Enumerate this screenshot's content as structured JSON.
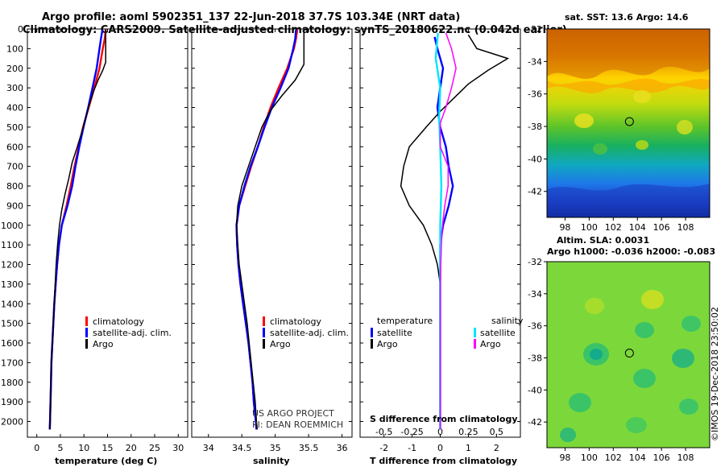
{
  "title_line1": "Argo profile: aoml 5902351_137 22-Jun-2018 37.7S 103.34E (NRT data)",
  "title_line2": "Climatology: CARS2009. Satellite-adjusted climatology: synTS_20180622.nc (0.042d earlier)",
  "colors": {
    "climatology": "#ff0000",
    "satellite": "#0000ff",
    "argo": "#000000",
    "sal_satellite": "#00e5ff",
    "sal_argo": "#ff00ff"
  },
  "chart_data": [
    {
      "type": "line",
      "id": "temperature",
      "xlabel": "temperature (deg C)",
      "xlim": [
        -2,
        32
      ],
      "ylim": [
        2080,
        0
      ],
      "xticks": [
        0,
        5,
        10,
        15,
        20,
        25,
        30
      ],
      "depth_ticks": [
        0,
        100,
        200,
        300,
        400,
        500,
        600,
        700,
        800,
        900,
        1000,
        1100,
        1200,
        1300,
        1400,
        1500,
        1600,
        1700,
        1800,
        1900,
        2000
      ],
      "legend": [
        "climatology",
        "satellite-adj. clim.",
        "Argo"
      ],
      "series": [
        {
          "name": "climatology",
          "points": [
            [
              14.6,
              5
            ],
            [
              14.4,
              50
            ],
            [
              14.0,
              100
            ],
            [
              13.3,
              200
            ],
            [
              12.2,
              300
            ],
            [
              11.0,
              400
            ],
            [
              9.8,
              500
            ],
            [
              8.9,
              600
            ],
            [
              8.0,
              700
            ],
            [
              7.2,
              800
            ],
            [
              6.3,
              900
            ],
            [
              5.3,
              1000
            ],
            [
              4.7,
              1100
            ],
            [
              4.3,
              1200
            ],
            [
              4.0,
              1300
            ],
            [
              3.7,
              1400
            ],
            [
              3.5,
              1500
            ],
            [
              3.3,
              1600
            ],
            [
              3.1,
              1700
            ],
            [
              3.0,
              1800
            ],
            [
              2.9,
              1900
            ],
            [
              2.8,
              2000
            ],
            [
              2.75,
              2040
            ]
          ]
        },
        {
          "name": "satellite-adj. clim.",
          "points": [
            [
              13.9,
              5
            ],
            [
              13.6,
              50
            ],
            [
              13.3,
              100
            ],
            [
              12.7,
              200
            ],
            [
              11.8,
              300
            ],
            [
              10.9,
              400
            ],
            [
              9.9,
              500
            ],
            [
              9.0,
              600
            ],
            [
              8.2,
              700
            ],
            [
              7.5,
              800
            ],
            [
              6.5,
              900
            ],
            [
              5.3,
              1000
            ],
            [
              4.7,
              1100
            ],
            [
              4.3,
              1200
            ],
            [
              4.0,
              1300
            ],
            [
              3.7,
              1400
            ],
            [
              3.5,
              1500
            ],
            [
              3.3,
              1600
            ],
            [
              3.1,
              1700
            ],
            [
              3.0,
              1800
            ],
            [
              2.9,
              1900
            ],
            [
              2.8,
              2000
            ],
            [
              2.75,
              2040
            ]
          ]
        },
        {
          "name": "Argo",
          "points": [
            [
              14.6,
              0
            ],
            [
              14.6,
              170
            ],
            [
              14.0,
              210
            ],
            [
              13.0,
              260
            ],
            [
              12.0,
              320
            ],
            [
              11.2,
              380
            ],
            [
              10.5,
              440
            ],
            [
              9.6,
              520
            ],
            [
              8.6,
              600
            ],
            [
              7.5,
              680
            ],
            [
              6.8,
              760
            ],
            [
              6.0,
              840
            ],
            [
              5.3,
              920
            ],
            [
              4.8,
              1000
            ],
            [
              4.4,
              1100
            ],
            [
              4.1,
              1200
            ],
            [
              3.9,
              1300
            ],
            [
              3.7,
              1400
            ],
            [
              3.5,
              1500
            ],
            [
              3.3,
              1600
            ],
            [
              3.1,
              1700
            ],
            [
              3.0,
              1800
            ],
            [
              2.9,
              1900
            ],
            [
              2.8,
              2000
            ],
            [
              2.75,
              2040
            ]
          ]
        }
      ]
    },
    {
      "type": "line",
      "id": "salinity",
      "xlabel": "salinity",
      "xlim": [
        33.75,
        36.15
      ],
      "ylim": [
        2080,
        0
      ],
      "xticks": [
        34,
        34.5,
        35,
        35.5,
        36
      ],
      "xticklabels": [
        "34",
        "34.5",
        "35",
        "35.5",
        "36"
      ],
      "legend": [
        "climatology",
        "satellite-adj. clim.",
        "Argo"
      ],
      "series": [
        {
          "name": "climatology",
          "points": [
            [
              35.33,
              5
            ],
            [
              35.31,
              50
            ],
            [
              35.28,
              100
            ],
            [
              35.18,
              200
            ],
            [
              35.05,
              300
            ],
            [
              34.93,
              400
            ],
            [
              34.83,
              500
            ],
            [
              34.74,
              600
            ],
            [
              34.64,
              700
            ],
            [
              34.55,
              800
            ],
            [
              34.46,
              900
            ],
            [
              34.42,
              1000
            ],
            [
              34.43,
              1100
            ],
            [
              34.45,
              1200
            ],
            [
              34.48,
              1300
            ],
            [
              34.52,
              1400
            ],
            [
              34.56,
              1500
            ],
            [
              34.6,
              1600
            ],
            [
              34.63,
              1700
            ],
            [
              34.66,
              1800
            ],
            [
              34.68,
              1900
            ],
            [
              34.71,
              2000
            ],
            [
              34.72,
              2040
            ]
          ]
        },
        {
          "name": "satellite-adj. clim.",
          "points": [
            [
              35.31,
              5
            ],
            [
              35.3,
              50
            ],
            [
              35.27,
              100
            ],
            [
              35.2,
              200
            ],
            [
              35.08,
              300
            ],
            [
              34.95,
              400
            ],
            [
              34.84,
              500
            ],
            [
              34.74,
              600
            ],
            [
              34.63,
              700
            ],
            [
              34.54,
              800
            ],
            [
              34.46,
              900
            ],
            [
              34.42,
              1000
            ],
            [
              34.43,
              1100
            ],
            [
              34.45,
              1200
            ],
            [
              34.48,
              1300
            ],
            [
              34.52,
              1400
            ],
            [
              34.56,
              1500
            ],
            [
              34.6,
              1600
            ],
            [
              34.63,
              1700
            ],
            [
              34.66,
              1800
            ],
            [
              34.68,
              1900
            ],
            [
              34.71,
              2000
            ],
            [
              34.72,
              2040
            ]
          ]
        },
        {
          "name": "Argo",
          "points": [
            [
              35.43,
              0
            ],
            [
              35.43,
              180
            ],
            [
              35.3,
              260
            ],
            [
              35.1,
              340
            ],
            [
              34.92,
              420
            ],
            [
              34.8,
              500
            ],
            [
              34.7,
              600
            ],
            [
              34.6,
              700
            ],
            [
              34.5,
              800
            ],
            [
              34.44,
              900
            ],
            [
              34.42,
              1000
            ],
            [
              34.44,
              1100
            ],
            [
              34.46,
              1200
            ],
            [
              34.5,
              1300
            ],
            [
              34.54,
              1400
            ],
            [
              34.58,
              1500
            ],
            [
              34.61,
              1600
            ],
            [
              34.64,
              1700
            ],
            [
              34.67,
              1800
            ],
            [
              34.7,
              1900
            ],
            [
              34.72,
              2000
            ],
            [
              34.73,
              2040
            ]
          ]
        }
      ]
    },
    {
      "type": "line",
      "id": "difference",
      "xlabel": "T difference from climatology",
      "s_axis_label": "S difference from climatology",
      "xlim": [
        -2.85,
        2.85
      ],
      "ylim": [
        2080,
        0
      ],
      "xticks": [
        -2,
        -1,
        0,
        1,
        2
      ],
      "s_xticks": [
        -0.5,
        -0.25,
        0,
        0.25,
        0.5
      ],
      "s_xticklabels": [
        "-0.5",
        "-0.25",
        "0",
        "0.25",
        "0.5"
      ],
      "legend_temperature_title": "temperature",
      "legend_salinity_title": "salinity",
      "legend_items": [
        "satellite",
        "Argo",
        "satellite",
        "Argo"
      ],
      "series": [
        {
          "name": "temperature satellite",
          "points": [
            [
              -0.2,
              40
            ],
            [
              -0.1,
              100
            ],
            [
              0.1,
              200
            ],
            [
              0.0,
              300
            ],
            [
              -0.1,
              400
            ],
            [
              0.0,
              500
            ],
            [
              0.2,
              600
            ],
            [
              0.3,
              700
            ],
            [
              0.45,
              800
            ],
            [
              0.3,
              900
            ],
            [
              0.1,
              1000
            ],
            [
              0.0,
              1100
            ],
            [
              0.0,
              1200
            ],
            [
              0.0,
              1300
            ],
            [
              0.0,
              1400
            ],
            [
              0.0,
              2040
            ]
          ]
        },
        {
          "name": "temperature Argo",
          "points": [
            [
              1.0,
              30
            ],
            [
              1.3,
              100
            ],
            [
              2.4,
              150
            ],
            [
              1.7,
              210
            ],
            [
              1.0,
              280
            ],
            [
              0.5,
              350
            ],
            [
              0.0,
              420
            ],
            [
              -0.5,
              500
            ],
            [
              -1.1,
              600
            ],
            [
              -1.3,
              700
            ],
            [
              -1.4,
              800
            ],
            [
              -1.1,
              900
            ],
            [
              -0.6,
              1000
            ],
            [
              -0.3,
              1100
            ],
            [
              -0.1,
              1200
            ],
            [
              0.0,
              1300
            ],
            [
              0.0,
              2040
            ]
          ]
        },
        {
          "name": "salinity satellite",
          "points": [
            [
              -0.02,
              20
            ],
            [
              -0.03,
              80
            ],
            [
              -0.04,
              150
            ],
            [
              0.0,
              300
            ],
            [
              -0.01,
              450
            ],
            [
              0.0,
              600
            ],
            [
              0.01,
              800
            ],
            [
              0.0,
              1000
            ],
            [
              0.0,
              2040
            ]
          ]
        },
        {
          "name": "salinity Argo",
          "points": [
            [
              0.05,
              20
            ],
            [
              0.1,
              100
            ],
            [
              0.14,
              200
            ],
            [
              0.1,
              300
            ],
            [
              0.05,
              400
            ],
            [
              0.0,
              480
            ],
            [
              0.0,
              600
            ],
            [
              0.07,
              700
            ],
            [
              0.07,
              800
            ],
            [
              0.04,
              900
            ],
            [
              0.02,
              1000
            ],
            [
              0.01,
              1100
            ],
            [
              0.0,
              1300
            ],
            [
              0.0,
              2040
            ]
          ]
        }
      ]
    }
  ],
  "credit_line1": "US ARGO PROJECT",
  "credit_line2": "PI: DEAN ROEMMICH",
  "map_top": {
    "title": "sat. SST: 13.6 Argo: 14.6",
    "lat_ticks": [
      "-32",
      "-34",
      "-36",
      "-38",
      "-40",
      "-42"
    ],
    "lon_ticks": [
      "98",
      "100",
      "102",
      "104",
      "106",
      "108"
    ],
    "argo_lon": 103.34,
    "argo_lat": -37.7
  },
  "map_bottom": {
    "title_line1": "Altim. SLA: 0.0031",
    "title_line2": "Argo h1000: -0.036 h2000: -0.083",
    "lat_ticks": [
      "-32",
      "-34",
      "-36",
      "-38",
      "-40",
      "-42"
    ],
    "lon_ticks": [
      "98",
      "100",
      "102",
      "104",
      "106",
      "108"
    ],
    "argo_lon": 103.34,
    "argo_lat": -37.7
  },
  "imos_stamp": "©IMOS 19-Dec-2018 23:50:02"
}
